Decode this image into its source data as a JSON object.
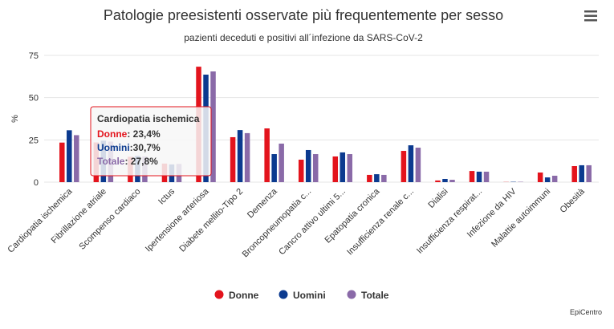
{
  "chart_data": {
    "type": "bar",
    "title": "Patologie preesistenti osservate più frequentemente per sesso",
    "subtitle": "pazienti deceduti e positivi all´infezione da SARS-CoV-2",
    "y_label": "%",
    "credits": "EpiCentro",
    "categories": [
      "Cardiopatia ischemica",
      "Fibrillazione atriale",
      "Scompenso cardiaco",
      "Ictus",
      "Ipertensione arteriosa",
      "Diabete mellito-Tipo 2",
      "Demenza",
      "Broncopneumopatia c...",
      "Cancro attivo ultimi 5...",
      "Epatopatia cronica",
      "Insufficienza renale c...",
      "Dialisi",
      "Insufficienza respirat...",
      "Infezione da HIV",
      "Malattie autoimmuni",
      "Obesità"
    ],
    "series": [
      {
        "name": "Donne",
        "color": "#e3141d",
        "values": [
          23.4,
          23.5,
          15,
          11,
          68.3,
          26.6,
          31.8,
          13.3,
          15.2,
          4.3,
          18.5,
          1,
          6.6,
          0.1,
          5.7,
          9.5
        ]
      },
      {
        "name": "Uomini",
        "color": "#0b3a8f",
        "values": [
          30.7,
          24.5,
          15.5,
          10.5,
          63.6,
          30.8,
          16.6,
          19,
          17.6,
          4.7,
          21.8,
          1.9,
          6.2,
          0.2,
          2.8,
          10
        ]
      },
      {
        "name": "Totale",
        "color": "#8a6aa8",
        "values": [
          27.8,
          24,
          15.2,
          10.8,
          65.5,
          29,
          22.8,
          16.6,
          16.6,
          4.3,
          20.4,
          1.4,
          6.2,
          0.2,
          3.8,
          10
        ]
      }
    ],
    "ylim": [
      0,
      75
    ],
    "yticks": [
      0,
      25,
      50,
      75
    ],
    "grid": true,
    "legend": "bottom",
    "tooltip": {
      "title": "Cardiopatia ischemica",
      "items": [
        {
          "name": "Donne",
          "value": ": 23,4%",
          "color": "#e3141d"
        },
        {
          "name": "Uomini",
          "value": ":30,7%",
          "color": "#0b3a8f"
        },
        {
          "name": "Totale",
          "value": ": 27,8%",
          "color": "#8a6aa8"
        }
      ]
    }
  }
}
